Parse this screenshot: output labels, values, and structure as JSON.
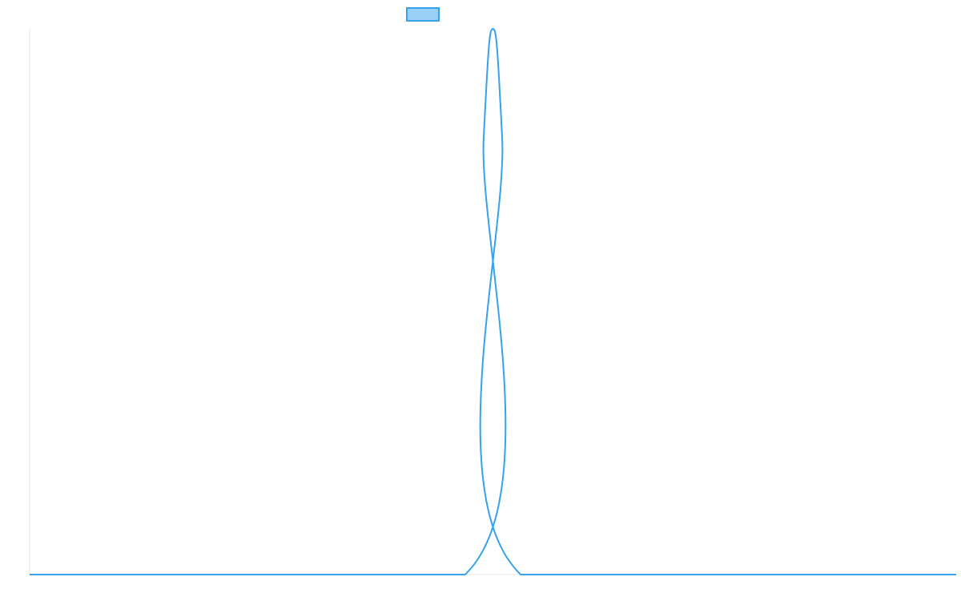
{
  "chart_data": {
    "type": "line",
    "title": "",
    "xlabel": "",
    "ylabel": "",
    "grid": false,
    "legend": {
      "placement": "top-center",
      "entries": [
        {
          "label": "",
          "color": "#36a2eb",
          "fill": "#9ad0f5"
        }
      ]
    },
    "xlim": [
      0,
      1000
    ],
    "ylim": [
      0,
      1
    ],
    "series": [
      {
        "color": "#36a2eb",
        "x": [
          0,
          470,
          490,
          500,
          510,
          530,
          1000
        ],
        "y": [
          0,
          0,
          0.8,
          1.0,
          0.8,
          0,
          0
        ]
      }
    ]
  }
}
